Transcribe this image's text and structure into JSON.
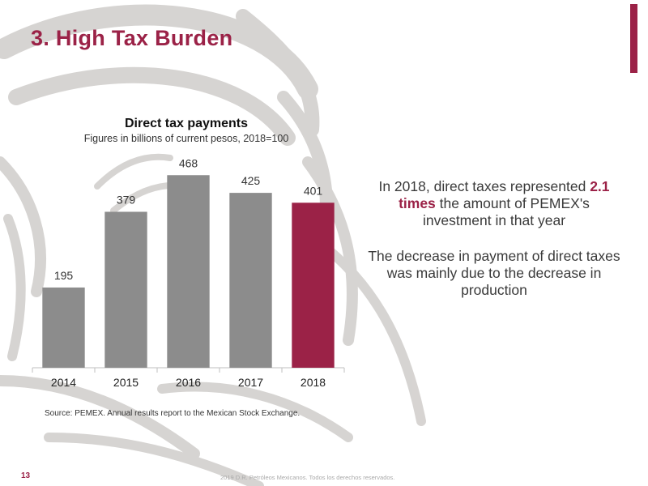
{
  "colors": {
    "accent": "#9b2247",
    "bar_default": "#8c8c8c",
    "bar_highlight": "#9b2247",
    "background_pattern": "#c9c6c3"
  },
  "slide": {
    "title": "3. High Tax Burden",
    "page_number": "13",
    "footer": "2019 D.R. Petróleos Mexicanos. Todos los derechos reservados."
  },
  "chart_data": {
    "type": "bar",
    "title": "Direct tax payments",
    "subtitle": "Figures in billions of current pesos, 2018=100",
    "categories": [
      "2014",
      "2015",
      "2016",
      "2017",
      "2018"
    ],
    "values": [
      195,
      379,
      468,
      425,
      401
    ],
    "highlight_category": "2018",
    "data_labels": true,
    "grid": false,
    "legend": "none",
    "ylim": [
      0,
      500
    ]
  },
  "commentary": {
    "paragraph1_before": "In 2018, direct taxes represented",
    "paragraph1_highlight": "2.1 times",
    "paragraph1_after": "the amount of PEMEX's investment in that year",
    "paragraph2": "The decrease in payment of direct taxes was mainly due to the decrease in production"
  },
  "source": "Source: PEMEX. Annual results report to the Mexican Stock Exchange."
}
